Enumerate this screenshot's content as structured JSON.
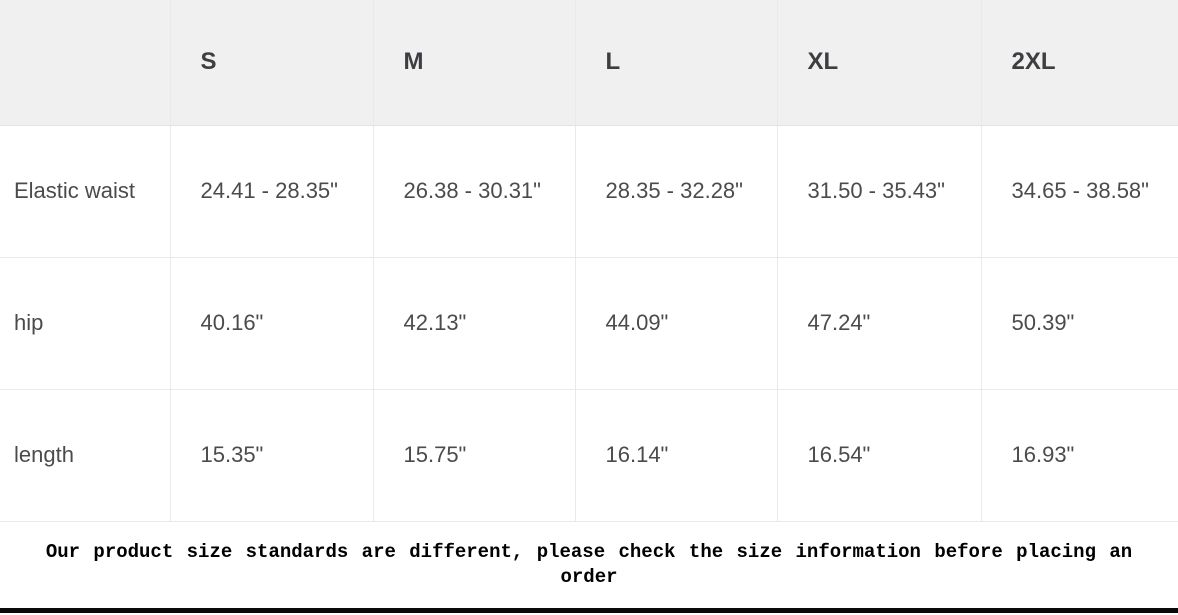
{
  "size_chart": {
    "columns": [
      "",
      "S",
      "M",
      "L",
      "XL",
      "2XL"
    ],
    "rows": [
      {
        "label": "Elastic waist",
        "values": [
          "24.41 - 28.35\"",
          "26.38 - 30.31\"",
          "28.35 - 32.28\"",
          "31.50 - 35.43\"",
          "34.65 - 38.58\""
        ]
      },
      {
        "label": "hip",
        "values": [
          "40.16\"",
          "42.13\"",
          "44.09\"",
          "47.24\"",
          "50.39\""
        ]
      },
      {
        "label": "length",
        "values": [
          "15.35\"",
          "15.75\"",
          "16.14\"",
          "16.54\"",
          "16.93\""
        ]
      }
    ],
    "note": "Our product size standards are different, please check the size information before placing an order"
  },
  "colors": {
    "header_bg": "#f0f0f0",
    "grid_line": "#e9e9e9",
    "header_text": "#3d3d42",
    "cell_text": "#4b4b4e",
    "note_text": "#000000",
    "bottom_bar": "#0a0a0a"
  }
}
